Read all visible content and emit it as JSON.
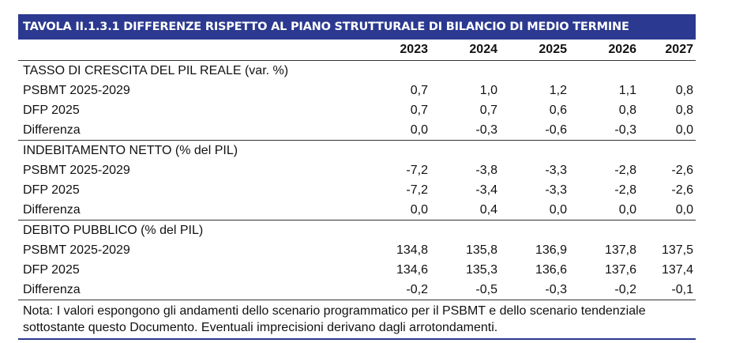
{
  "title": "TAVOLA II.1.3.1 DIFFERENZE RISPETTO AL PIANO STRUTTURALE DI BILANCIO DI MEDIO TERMINE",
  "years": [
    "2023",
    "2024",
    "2025",
    "2026",
    "2027"
  ],
  "sections": [
    {
      "heading": "TASSO DI CRESCITA DEL PIL REALE (var. %)",
      "rows": [
        {
          "label": "PSBMT 2025-2029",
          "values": [
            "0,7",
            "1,0",
            "1,2",
            "1,1",
            "0,8"
          ]
        },
        {
          "label": "DFP 2025",
          "values": [
            "0,7",
            "0,7",
            "0,6",
            "0,8",
            "0,8"
          ]
        },
        {
          "label": "Differenza",
          "values": [
            "0,0",
            "-0,3",
            "-0,6",
            "-0,3",
            "0,0"
          ]
        }
      ]
    },
    {
      "heading": "INDEBITAMENTO NETTO (% del PIL)",
      "rows": [
        {
          "label": "PSBMT 2025-2029",
          "values": [
            "-7,2",
            "-3,8",
            "-3,3",
            "-2,8",
            "-2,6"
          ]
        },
        {
          "label": "DFP 2025",
          "values": [
            "-7,2",
            "-3,4",
            "-3,3",
            "-2,8",
            "-2,6"
          ]
        },
        {
          "label": "Differenza",
          "values": [
            "0,0",
            "0,4",
            "0,0",
            "0,0",
            "0,0"
          ]
        }
      ]
    },
    {
      "heading": "DEBITO PUBBLICO (% del PIL)",
      "rows": [
        {
          "label": "PSBMT 2025-2029",
          "values": [
            "134,8",
            "135,8",
            "136,9",
            "137,8",
            "137,5"
          ]
        },
        {
          "label": "DFP 2025",
          "values": [
            "134,6",
            "135,3",
            "136,6",
            "137,6",
            "137,4"
          ]
        },
        {
          "label": "Differenza",
          "values": [
            "-0,2",
            "-0,5",
            "-0,3",
            "-0,2",
            "-0,1"
          ]
        }
      ]
    }
  ],
  "note": "Nota: I valori espongono gli andamenti dello scenario programmatico per il PSBMT e dello scenario tendenziale sottostante questo Documento. Eventuali imprecisioni derivano dagli arrotondamenti.",
  "colors": {
    "title_bg": "#2b3990",
    "title_text": "#ffffff"
  }
}
